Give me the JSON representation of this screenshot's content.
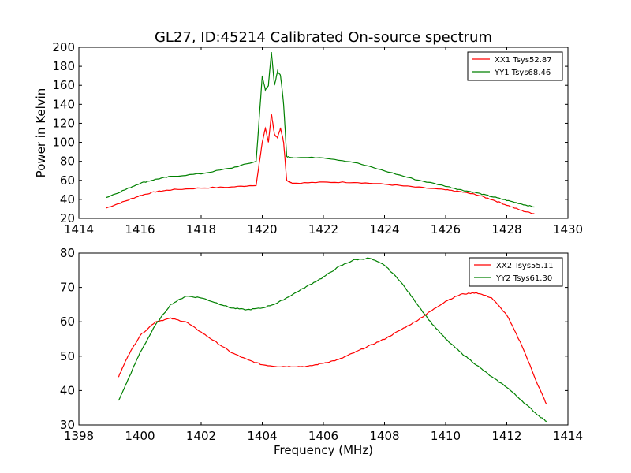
{
  "title": "GL27, ID:45214 Calibrated On-source spectrum",
  "colors": {
    "xx": "#ff0000",
    "yy": "#008000"
  },
  "chart_data": [
    {
      "type": "line",
      "ylabel": "Power in Kelvin",
      "xlabel": "",
      "xlim": [
        1414,
        1430
      ],
      "ylim": [
        20,
        200
      ],
      "xticks": [
        1414,
        1416,
        1418,
        1420,
        1422,
        1424,
        1426,
        1428,
        1430
      ],
      "yticks": [
        20,
        40,
        60,
        80,
        100,
        120,
        140,
        160,
        180,
        200
      ],
      "legend_position": "top-right",
      "series": [
        {
          "name": "XX1 Tsys52.87",
          "color": "#ff0000",
          "x": [
            1414.9,
            1415.5,
            1416,
            1416.5,
            1417,
            1418,
            1419,
            1419.8,
            1420.0,
            1420.1,
            1420.2,
            1420.3,
            1420.4,
            1420.5,
            1420.6,
            1420.7,
            1420.8,
            1421,
            1422,
            1423,
            1424,
            1425,
            1426,
            1426.5,
            1427,
            1427.5,
            1428,
            1428.5,
            1428.9
          ],
          "y": [
            31,
            38,
            44,
            48,
            50,
            52,
            53,
            55,
            100,
            115,
            100,
            130,
            108,
            105,
            115,
            100,
            60,
            57,
            58,
            58,
            56,
            53,
            50,
            48,
            45,
            40,
            34,
            28,
            25
          ]
        },
        {
          "name": "YY1 Tsys68.46",
          "color": "#008000",
          "x": [
            1414.9,
            1415.5,
            1416,
            1416.5,
            1417,
            1418,
            1419,
            1419.8,
            1420.0,
            1420.1,
            1420.2,
            1420.3,
            1420.4,
            1420.5,
            1420.6,
            1420.7,
            1420.8,
            1421,
            1422,
            1423,
            1424,
            1425,
            1426,
            1426.5,
            1427,
            1427.5,
            1428,
            1428.5,
            1428.9
          ],
          "y": [
            42,
            50,
            57,
            61,
            64,
            67,
            73,
            80,
            170,
            155,
            160,
            195,
            160,
            175,
            170,
            140,
            85,
            84,
            84,
            79,
            70,
            61,
            54,
            50,
            47,
            43,
            39,
            35,
            32
          ]
        }
      ]
    },
    {
      "type": "line",
      "ylabel": "",
      "xlabel": "Frequency (MHz)",
      "xlim": [
        1398,
        1414
      ],
      "ylim": [
        30,
        80
      ],
      "xticks": [
        1398,
        1400,
        1402,
        1404,
        1406,
        1408,
        1410,
        1412,
        1414
      ],
      "yticks": [
        30,
        40,
        50,
        60,
        70,
        80
      ],
      "legend_position": "top-right",
      "series": [
        {
          "name": "XX2 Tsys55.11",
          "color": "#ff0000",
          "x": [
            1399.3,
            1399.6,
            1400,
            1400.5,
            1401,
            1401.5,
            1402,
            1402.5,
            1403,
            1403.5,
            1404,
            1404.5,
            1405,
            1405.5,
            1406,
            1406.5,
            1407,
            1407.5,
            1408,
            1408.5,
            1409,
            1409.5,
            1410,
            1410.5,
            1411,
            1411.5,
            1412,
            1412.5,
            1413,
            1413.3
          ],
          "y": [
            44,
            50,
            56,
            60,
            61,
            60,
            57,
            54,
            51,
            49,
            47.5,
            47,
            47,
            47,
            48,
            49,
            51,
            53,
            55,
            57.5,
            60,
            63,
            66,
            68,
            68.5,
            67,
            62,
            53,
            42,
            36
          ]
        },
        {
          "name": "YY2 Tsys61.30",
          "color": "#008000",
          "x": [
            1399.3,
            1399.6,
            1400,
            1400.5,
            1401,
            1401.5,
            1402,
            1402.5,
            1403,
            1403.5,
            1404,
            1404.5,
            1405,
            1405.5,
            1406,
            1406.5,
            1407,
            1407.5,
            1408,
            1408.5,
            1409,
            1409.5,
            1410,
            1410.5,
            1411,
            1411.5,
            1412,
            1412.5,
            1413,
            1413.3
          ],
          "y": [
            37,
            43,
            51,
            59,
            65,
            67.5,
            67,
            65.5,
            64,
            63.5,
            64,
            65.5,
            68,
            70.5,
            73,
            76,
            78,
            78.5,
            76.5,
            72,
            66,
            60,
            55,
            51,
            47.5,
            44,
            41,
            37,
            33,
            31
          ]
        }
      ]
    }
  ]
}
